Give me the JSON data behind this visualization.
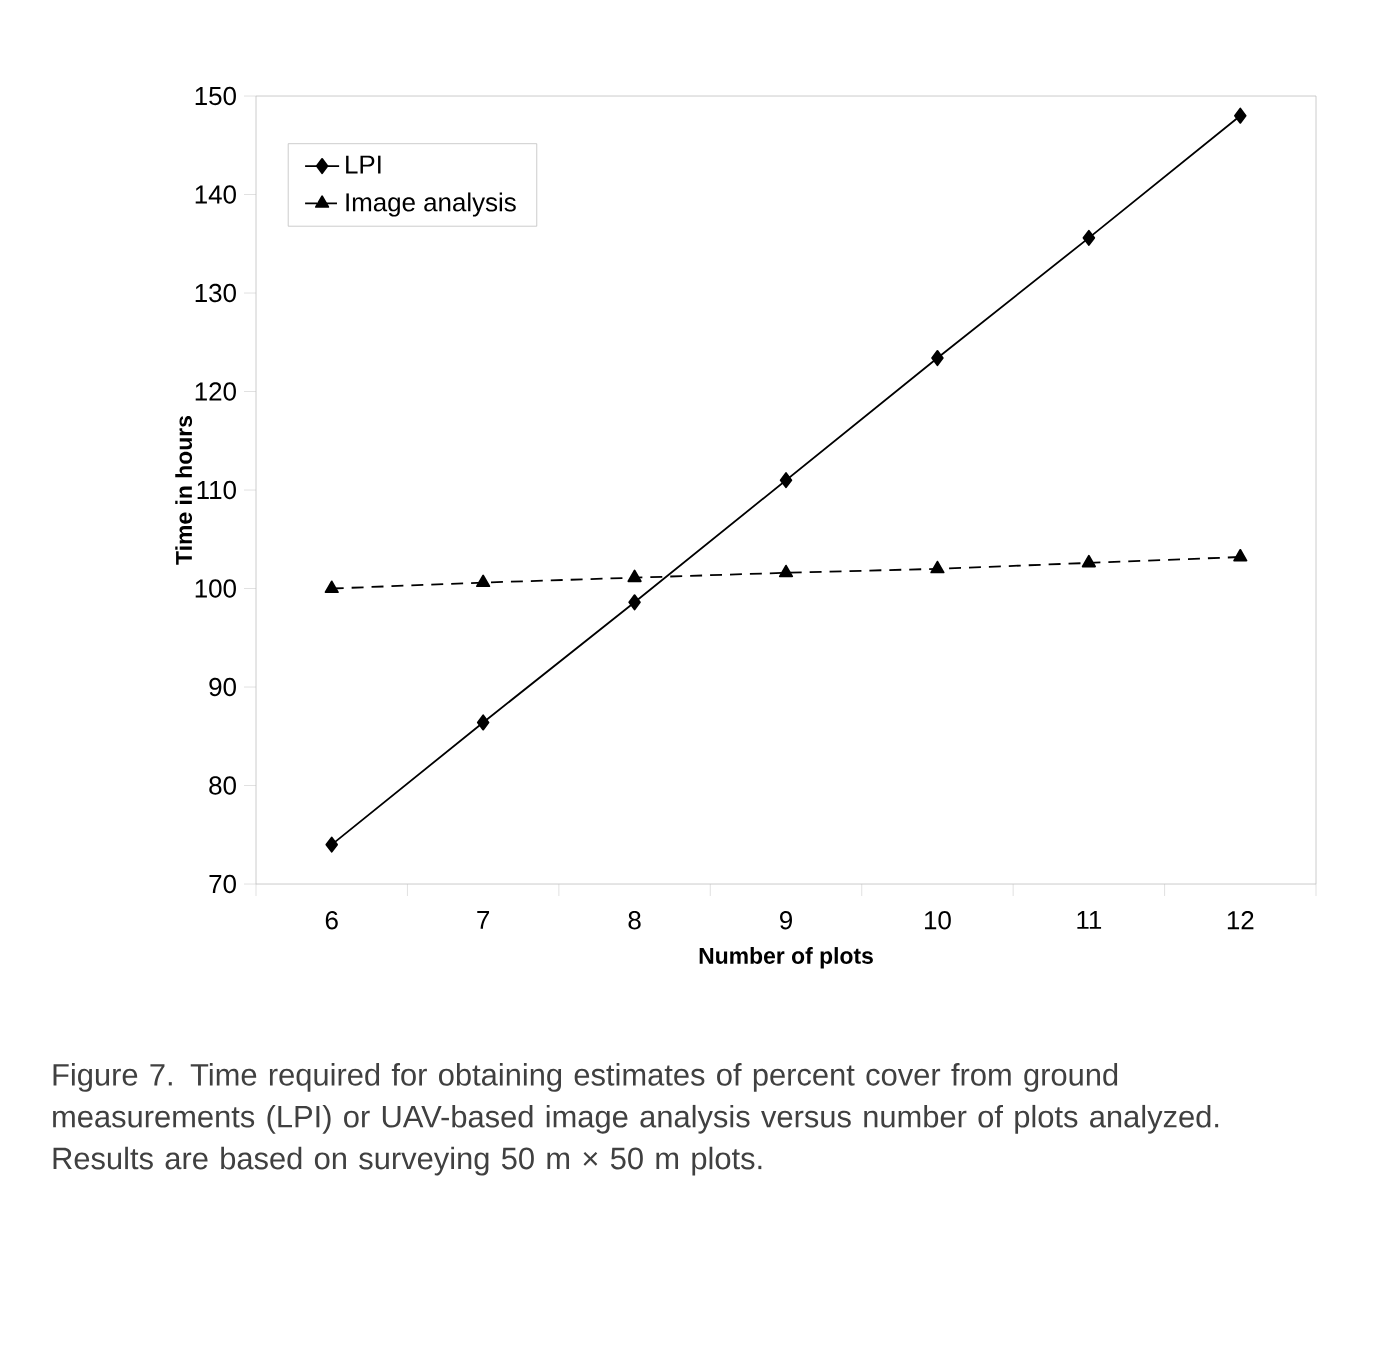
{
  "chart_data": {
    "type": "line",
    "xlabel": "Number of plots",
    "ylabel": "Time in hours",
    "categories": [
      "6",
      "7",
      "8",
      "9",
      "10",
      "11",
      "12"
    ],
    "series": [
      {
        "name": "LPI",
        "color": "#000000",
        "marker": "diamond",
        "line_style": "solid",
        "values": [
          74,
          86.4,
          98.6,
          111,
          123.4,
          135.6,
          148
        ]
      },
      {
        "name": "Image analysis",
        "color": "#000000",
        "marker": "triangle",
        "line_style": "dashed",
        "values": [
          100,
          100.6,
          101.1,
          101.6,
          102,
          102.6,
          103.2
        ]
      }
    ],
    "ylim": [
      70,
      150
    ],
    "yticks": [
      70,
      80,
      90,
      100,
      110,
      120,
      130,
      140,
      150
    ],
    "grid": false,
    "legend": "top left",
    "annotations": [
      "Figure 7. Time required for obtaining estimates of percent cover from ground measurements (LPI) or UAV-based image analysis versus number of plots analyzed. Results are based on surveying 50 m × 50 m plots."
    ]
  }
}
